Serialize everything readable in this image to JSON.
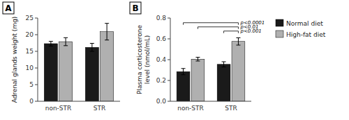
{
  "chart_data": [
    {
      "type": "bar",
      "title": "A",
      "y_label": "Adrenal glands weight (mg)",
      "categories": [
        "non-STR",
        "STR"
      ],
      "series": [
        {
          "name": "Normal diet",
          "color": "#1a1a1a",
          "values": [
            17.3,
            16.2
          ],
          "errors": [
            0.7,
            1.2
          ]
        },
        {
          "name": "High-fat diet",
          "color": "#b0b0b0",
          "values": [
            17.9,
            20.9
          ],
          "errors": [
            1.2,
            2.5
          ]
        }
      ],
      "ylim": [
        0,
        25
      ],
      "yticks": [
        0,
        5,
        10,
        15,
        20,
        25
      ],
      "grid": false,
      "legend": "right"
    },
    {
      "type": "bar",
      "title": "B",
      "y_label": "Plasma corticosterone\nlevel (nmol/mL)",
      "categories": [
        "non-STR",
        "STR"
      ],
      "series": [
        {
          "name": "Normal diet",
          "color": "#1a1a1a",
          "values": [
            0.285,
            0.355
          ],
          "errors": [
            0.03,
            0.025
          ]
        },
        {
          "name": "High-fat diet",
          "color": "#b0b0b0",
          "values": [
            0.405,
            0.575
          ],
          "errors": [
            0.018,
            0.035
          ]
        }
      ],
      "ylim": [
        0,
        0.8
      ],
      "yticks": [
        {
          "value": 0.0,
          "label": "0.0"
        },
        0.2,
        0.4,
        0.6,
        0.8
      ],
      "grid": false,
      "annotations": [
        {
          "text": "p<0.0001",
          "y": 0.755,
          "from": [
            "non-STR",
            "Normal diet"
          ],
          "to": [
            "STR",
            "High-fat diet"
          ]
        },
        {
          "text": "p<0.01",
          "y": 0.715,
          "from": [
            "non-STR",
            "High-fat diet"
          ],
          "to": [
            "STR",
            "High-fat diet"
          ]
        },
        {
          "text": "p<0.001",
          "y": 0.675,
          "from": [
            "STR",
            "Normal diet"
          ],
          "to": [
            "STR",
            "High-fat diet"
          ]
        }
      ]
    }
  ]
}
